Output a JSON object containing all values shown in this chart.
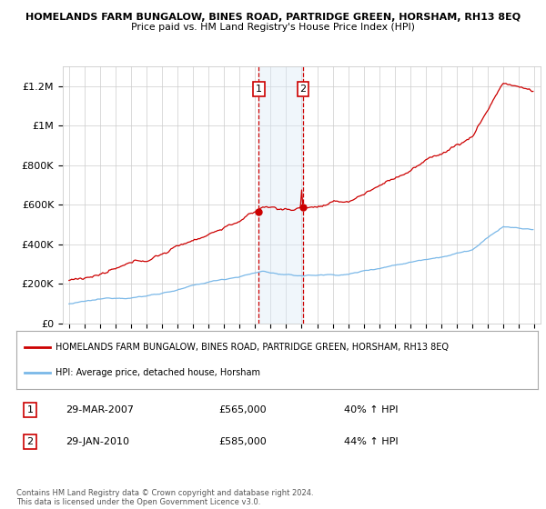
{
  "title": "HOMELANDS FARM BUNGALOW, BINES ROAD, PARTRIDGE GREEN, HORSHAM, RH13 8EQ",
  "subtitle": "Price paid vs. HM Land Registry's House Price Index (HPI)",
  "legend_line1": "HOMELANDS FARM BUNGALOW, BINES ROAD, PARTRIDGE GREEN, HORSHAM, RH13 8EQ",
  "legend_line2": "HPI: Average price, detached house, Horsham",
  "sale1_date": "29-MAR-2007",
  "sale1_price": "£565,000",
  "sale1_hpi": "40% ↑ HPI",
  "sale2_date": "29-JAN-2010",
  "sale2_price": "£585,000",
  "sale2_hpi": "44% ↑ HPI",
  "footer": "Contains HM Land Registry data © Crown copyright and database right 2024.\nThis data is licensed under the Open Government Licence v3.0.",
  "hpi_color": "#7ab8e8",
  "price_color": "#cc0000",
  "highlight_color": "#daeaf7",
  "dashed_line_color": "#cc0000",
  "grid_color": "#cccccc",
  "ylim": [
    0,
    1300000
  ],
  "yticks": [
    0,
    200000,
    400000,
    600000,
    800000,
    1000000,
    1200000
  ],
  "ytick_labels": [
    "£0",
    "£200K",
    "£400K",
    "£600K",
    "£800K",
    "£1M",
    "£1.2M"
  ],
  "sale1_x": 2007.24,
  "sale2_x": 2010.08,
  "background_color": "#ffffff"
}
